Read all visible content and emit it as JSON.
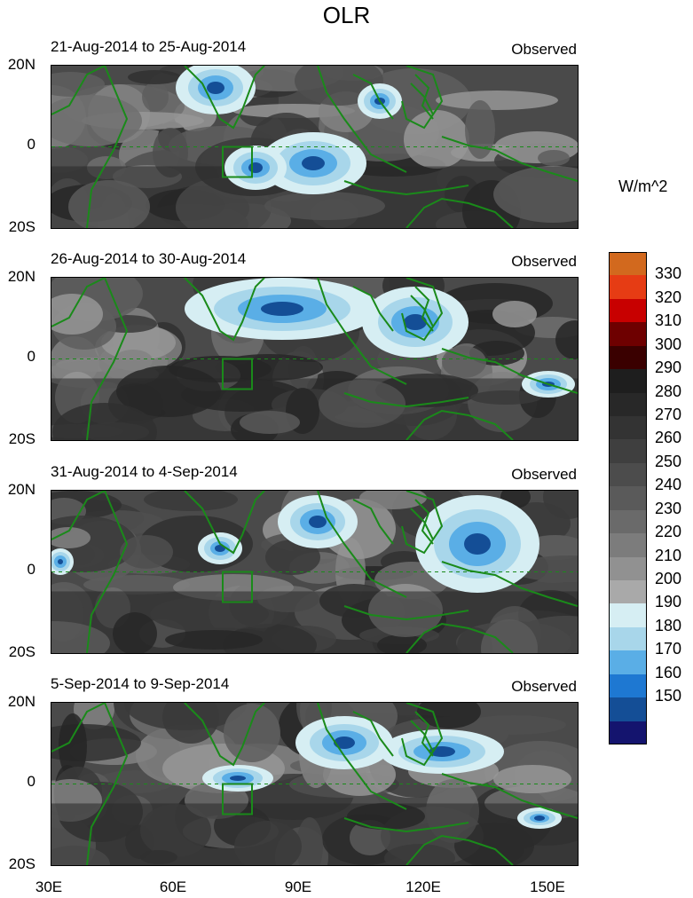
{
  "title": "OLR",
  "units": "W/m^2",
  "panels": [
    {
      "dates": "21-Aug-2014 to 25-Aug-2014",
      "tag": "Observed"
    },
    {
      "dates": "26-Aug-2014 to 30-Aug-2014",
      "tag": "Observed"
    },
    {
      "dates": "31-Aug-2014 to 4-Sep-2014",
      "tag": "Observed"
    },
    {
      "dates": "5-Sep-2014 to 9-Sep-2014",
      "tag": "Observed"
    }
  ],
  "lat_labels": [
    "20N",
    "0",
    "20S"
  ],
  "lon_labels": [
    "30E",
    "60E",
    "90E",
    "120E",
    "150E"
  ],
  "colorbar": {
    "labels": [
      "330",
      "320",
      "310",
      "300",
      "290",
      "280",
      "270",
      "260",
      "250",
      "240",
      "230",
      "220",
      "210",
      "200",
      "190",
      "180",
      "170",
      "160",
      "150"
    ],
    "colors": [
      "#d2691e",
      "#e63c14",
      "#c80000",
      "#6e0000",
      "#3a0000",
      "#1e1e1e",
      "#282828",
      "#333333",
      "#3f3f3f",
      "#4c4c4c",
      "#5a5a5a",
      "#6a6a6a",
      "#7c7c7c",
      "#919191",
      "#a9a9a9",
      "#d6eef3",
      "#a8d6ea",
      "#5aaee6",
      "#1e78d2",
      "#144e96",
      "#14146e"
    ]
  },
  "colors": {
    "coastline": "#1a8a1a",
    "deep_convection": "#14146e",
    "subsidence": "#1e1e1e"
  }
}
